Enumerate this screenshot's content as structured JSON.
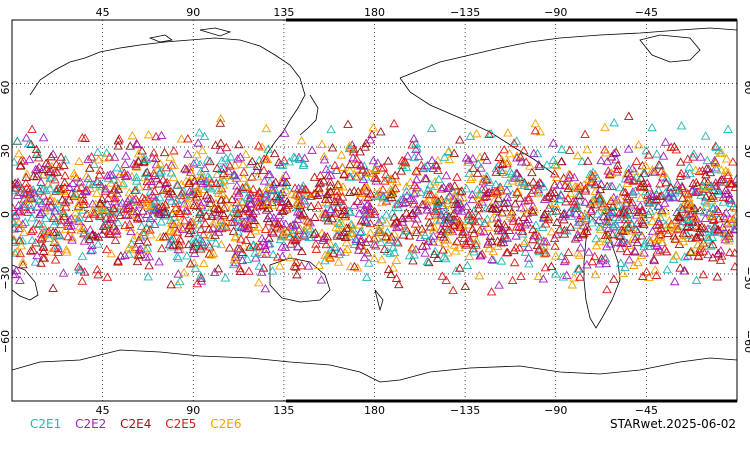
{
  "map": {
    "projection": "equirectangular",
    "center_lon": 180,
    "lat_range": [
      -90,
      90
    ],
    "lon_ticks_top": [
      "45",
      "90",
      "135",
      "180",
      "−135",
      "−90",
      "−45"
    ],
    "lon_ticks_bottom": [
      "45",
      "90",
      "135",
      "180",
      "−135",
      "−90",
      "−45"
    ],
    "lat_ticks": [
      "60",
      "30",
      "0",
      "−30",
      "−60"
    ],
    "lat_tick_values": [
      60,
      30,
      0,
      -30,
      -60
    ],
    "lon_tick_values": [
      45,
      90,
      135,
      180,
      225,
      270,
      315
    ],
    "gridlines": "dotted",
    "marker": "triangle",
    "data_lat_range": [
      -45,
      47
    ]
  },
  "legend": {
    "items": [
      {
        "label": "C2E1",
        "color": "#1fb8b8"
      },
      {
        "label": "C2E2",
        "color": "#a020c0"
      },
      {
        "label": "C2E4",
        "color": "#a01010"
      },
      {
        "label": "C2E5",
        "color": "#e01818"
      },
      {
        "label": "C2E6",
        "color": "#f5a000"
      }
    ]
  },
  "caption": "STARwet.2025-06-02"
}
